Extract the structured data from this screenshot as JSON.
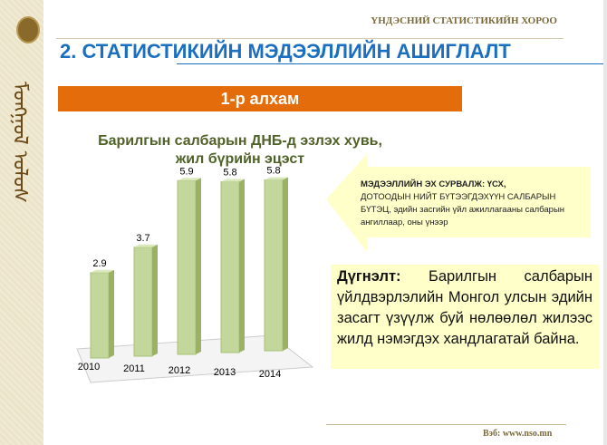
{
  "header": {
    "org": "ҮНДЭСНИЙ СТАТИСТИКИЙН ХОРОО",
    "script_text": "ᠮᠣᠩᠭᠣᠯ ᠤᠯᠤᠰ",
    "title": "2.   СТАТИСТИКИЙН МЭДЭЭЛЛИЙН АШИГЛАЛТ"
  },
  "step": "1-р алхам",
  "chart_data": {
    "type": "bar",
    "title": "Барилгын салбарын ДНБ-д эзлэх хувь, жил бүрийн эцэст",
    "title_line1": "Барилгын салбарын ДНБ-д эзлэх хувь,",
    "title_line2": "жил бүрийн эцэст",
    "categories": [
      "2010",
      "2011",
      "2012",
      "2013",
      "2014"
    ],
    "values": [
      2.9,
      3.7,
      5.9,
      5.8,
      5.8
    ],
    "labels": [
      "2.9",
      "3.7",
      "5.9",
      "5.8",
      "5.8"
    ],
    "ylim": [
      0,
      6.5
    ],
    "color": "#c3d69b",
    "grid": false
  },
  "source": {
    "bold": "МЭДЭЭЛЛИЙН ЭХ СУРВАЛЖ: ҮСХ,",
    "rest": "ДОТООДЫН НИЙТ БҮТЭЭГДЭХҮҮН САЛБАРЫН БҮТЭЦ, эдийн засгийн үйл ажиллагааны салбарын ангиллаар, оны үнээр"
  },
  "conclusion": {
    "label": "Дүгнэлт:",
    "text": " Барилгын салбарын үйлдвэрлэлийн Монгол улсын эдийн засагт үзүүлж буй нөлөөлөл жилээс жилд нэмэгдэх хандлагатай байна."
  },
  "footer": {
    "web": "Вэб: www.nso.mn"
  }
}
